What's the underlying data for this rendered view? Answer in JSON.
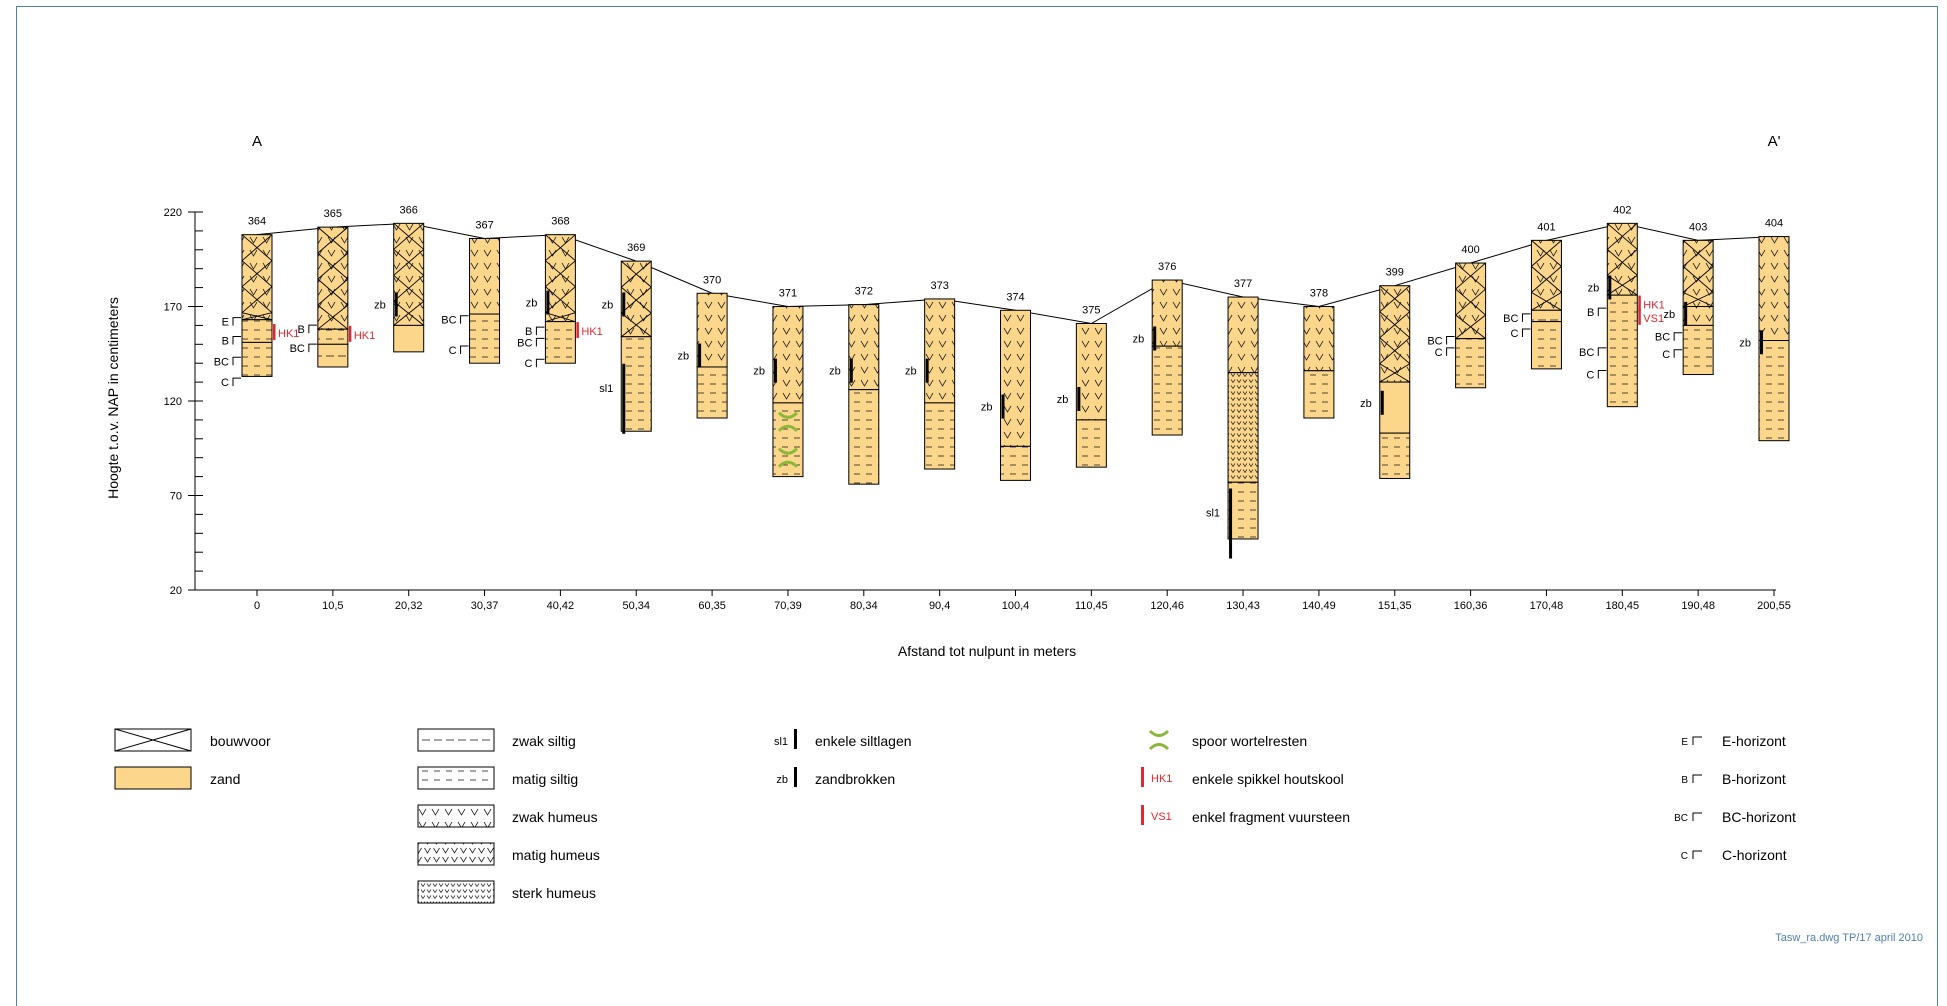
{
  "section": {
    "start_label": "A",
    "end_label": "A'"
  },
  "y_axis": {
    "label": "Hoogte t.o.v. NAP in centimeters",
    "ticks": [
      "220",
      "170",
      "120",
      "70",
      "20"
    ]
  },
  "x_axis": {
    "label": "Afstand tot nulpunt in meters"
  },
  "colors": {
    "zand": "#fcd68a",
    "frame": "#4f7fb5",
    "red": "#e0282d",
    "root": "#8bb83a"
  },
  "boreholes": [
    {
      "id": "364",
      "x_label": "0",
      "top": 208,
      "units": [
        {
          "from": 208,
          "to": 163,
          "t": "bouwvoor"
        },
        {
          "from": 163,
          "to": 151,
          "t": "matig_siltig"
        },
        {
          "from": 151,
          "to": 133,
          "t": "matig_siltig"
        }
      ],
      "horizons": [
        {
          "name": "E",
          "at": 162
        },
        {
          "name": "B",
          "at": 152
        },
        {
          "name": "BC",
          "at": 141
        },
        {
          "name": "C",
          "at": 130
        }
      ],
      "marks": [
        {
          "text": "HK1",
          "at": 156,
          "type": "hk"
        }
      ]
    },
    {
      "id": "365",
      "x_label": "10,5",
      "top": 212,
      "units": [
        {
          "from": 212,
          "to": 158,
          "t": "bouwvoor"
        },
        {
          "from": 158,
          "to": 150,
          "t": "matig_siltig"
        },
        {
          "from": 150,
          "to": 138,
          "t": "zwak_siltig"
        }
      ],
      "horizons": [
        {
          "name": "B",
          "at": 158
        },
        {
          "name": "BC",
          "at": 148
        }
      ],
      "marks": [
        {
          "text": "HK1",
          "at": 155,
          "type": "hk"
        }
      ]
    },
    {
      "id": "366",
      "x_label": "20,32",
      "top": 214,
      "units": [
        {
          "from": 214,
          "to": 160,
          "t": "bouwvoor"
        },
        {
          "from": 160,
          "to": 146,
          "t": "zand"
        }
      ],
      "horizons": [],
      "marks": [
        {
          "text": "zb",
          "at": 170,
          "type": "zb"
        }
      ]
    },
    {
      "id": "367",
      "x_label": "30,37",
      "top": 206,
      "units": [
        {
          "from": 206,
          "to": 166,
          "t": "zwak_humeus"
        },
        {
          "from": 166,
          "to": 140,
          "t": "matig_siltig"
        }
      ],
      "horizons": [
        {
          "name": "BC",
          "at": 163
        },
        {
          "name": "C",
          "at": 147
        }
      ],
      "marks": []
    },
    {
      "id": "368",
      "x_label": "40,42",
      "top": 208,
      "units": [
        {
          "from": 208,
          "to": 162,
          "t": "bouwvoor"
        },
        {
          "from": 162,
          "to": 140,
          "t": "matig_siltig"
        }
      ],
      "horizons": [
        {
          "name": "B",
          "at": 157
        },
        {
          "name": "BC",
          "at": 151
        },
        {
          "name": "C",
          "at": 140
        }
      ],
      "marks": [
        {
          "text": "zb",
          "at": 171,
          "type": "zb"
        },
        {
          "text": "HK1",
          "at": 157,
          "type": "hk"
        }
      ]
    },
    {
      "id": "369",
      "x_label": "50,34",
      "top": 194,
      "units": [
        {
          "from": 194,
          "to": 154,
          "t": "bouwvoor"
        },
        {
          "from": 154,
          "to": 104,
          "t": "matig_siltig"
        }
      ],
      "horizons": [],
      "marks": [
        {
          "text": "zb",
          "at": 170,
          "type": "zb"
        },
        {
          "text": "sl1",
          "at": 127,
          "type": "sl"
        }
      ]
    },
    {
      "id": "370",
      "x_label": "60,35",
      "top": 177,
      "units": [
        {
          "from": 177,
          "to": 138,
          "t": "zwak_humeus"
        },
        {
          "from": 138,
          "to": 111,
          "t": "matig_siltig"
        }
      ],
      "horizons": [],
      "marks": [
        {
          "text": "zb",
          "at": 143,
          "type": "zb"
        }
      ]
    },
    {
      "id": "371",
      "x_label": "70,39",
      "top": 170,
      "units": [
        {
          "from": 170,
          "to": 119,
          "t": "zwak_humeus"
        },
        {
          "from": 119,
          "to": 80,
          "t": "matig_siltig"
        }
      ],
      "horizons": [],
      "marks": [
        {
          "text": "zb",
          "at": 135,
          "type": "zb"
        },
        {
          "text": "root",
          "at": 109,
          "type": "root"
        },
        {
          "text": "root",
          "at": 90,
          "type": "root"
        }
      ]
    },
    {
      "id": "372",
      "x_label": "80,34",
      "top": 171,
      "units": [
        {
          "from": 171,
          "to": 126,
          "t": "zwak_humeus"
        },
        {
          "from": 126,
          "to": 76,
          "t": "matig_siltig"
        }
      ],
      "horizons": [],
      "marks": [
        {
          "text": "zb",
          "at": 135,
          "type": "zb"
        }
      ]
    },
    {
      "id": "373",
      "x_label": "90,4",
      "top": 174,
      "units": [
        {
          "from": 174,
          "to": 119,
          "t": "zwak_humeus"
        },
        {
          "from": 119,
          "to": 84,
          "t": "matig_siltig"
        }
      ],
      "horizons": [],
      "marks": [
        {
          "text": "zb",
          "at": 135,
          "type": "zb"
        }
      ]
    },
    {
      "id": "374",
      "x_label": "100,4",
      "top": 168,
      "units": [
        {
          "from": 168,
          "to": 96,
          "t": "zwak_humeus"
        },
        {
          "from": 96,
          "to": 78,
          "t": "matig_siltig"
        }
      ],
      "horizons": [],
      "marks": [
        {
          "text": "zb",
          "at": 116,
          "type": "zb"
        }
      ]
    },
    {
      "id": "375",
      "x_label": "110,45",
      "top": 161,
      "units": [
        {
          "from": 161,
          "to": 110,
          "t": "zwak_humeus"
        },
        {
          "from": 110,
          "to": 85,
          "t": "matig_siltig"
        }
      ],
      "horizons": [],
      "marks": [
        {
          "text": "zb",
          "at": 120,
          "type": "zb"
        }
      ]
    },
    {
      "id": "376",
      "x_label": "120,46",
      "top": 184,
      "units": [
        {
          "from": 184,
          "to": 149,
          "t": "zwak_humeus"
        },
        {
          "from": 149,
          "to": 102,
          "t": "matig_siltig"
        }
      ],
      "horizons": [],
      "marks": [
        {
          "text": "zb",
          "at": 152,
          "type": "zb"
        }
      ]
    },
    {
      "id": "377",
      "x_label": "130,43",
      "top": 175,
      "units": [
        {
          "from": 175,
          "to": 135,
          "t": "zwak_humeus"
        },
        {
          "from": 135,
          "to": 77,
          "t": "sterk_humeus"
        },
        {
          "from": 77,
          "to": 47,
          "t": "matig_siltig"
        }
      ],
      "horizons": [],
      "marks": [
        {
          "text": "sl1",
          "at": 61,
          "type": "sl"
        }
      ]
    },
    {
      "id": "378",
      "x_label": "140,49",
      "top": 170,
      "units": [
        {
          "from": 170,
          "to": 136,
          "t": "zwak_humeus"
        },
        {
          "from": 136,
          "to": 111,
          "t": "matig_siltig"
        }
      ],
      "horizons": [],
      "marks": []
    },
    {
      "id": "399",
      "x_label": "151,35",
      "top": 181,
      "units": [
        {
          "from": 181,
          "to": 130,
          "t": "bouwvoor"
        },
        {
          "from": 130,
          "to": 103,
          "t": "zand"
        },
        {
          "from": 103,
          "to": 79,
          "t": "matig_siltig"
        }
      ],
      "horizons": [],
      "marks": [
        {
          "text": "zb",
          "at": 118,
          "type": "zb"
        }
      ]
    },
    {
      "id": "400",
      "x_label": "160,36",
      "top": 193,
      "units": [
        {
          "from": 193,
          "to": 153,
          "t": "bouwvoor"
        },
        {
          "from": 153,
          "to": 127,
          "t": "matig_siltig"
        }
      ],
      "horizons": [
        {
          "name": "BC",
          "at": 152
        },
        {
          "name": "C",
          "at": 146
        }
      ],
      "marks": []
    },
    {
      "id": "401",
      "x_label": "170,48",
      "top": 205,
      "units": [
        {
          "from": 205,
          "to": 168,
          "t": "bouwvoor"
        },
        {
          "from": 168,
          "to": 162,
          "t": "zwak_siltig"
        },
        {
          "from": 162,
          "to": 137,
          "t": "matig_siltig"
        }
      ],
      "horizons": [
        {
          "name": "BC",
          "at": 164
        },
        {
          "name": "C",
          "at": 156
        }
      ],
      "marks": []
    },
    {
      "id": "402",
      "x_label": "180,45",
      "top": 214,
      "units": [
        {
          "from": 214,
          "to": 176,
          "t": "bouwvoor"
        },
        {
          "from": 176,
          "to": 117,
          "t": "matig_siltig"
        }
      ],
      "horizons": [
        {
          "name": "B",
          "at": 167
        },
        {
          "name": "BC",
          "at": 146
        },
        {
          "name": "C",
          "at": 134
        }
      ],
      "marks": [
        {
          "text": "zb",
          "at": 179,
          "type": "zb"
        },
        {
          "text": "HK1",
          "at": 171,
          "type": "hk"
        },
        {
          "text": "VS1",
          "at": 164,
          "type": "vs"
        }
      ]
    },
    {
      "id": "403",
      "x_label": "190,48",
      "top": 205,
      "units": [
        {
          "from": 205,
          "to": 170,
          "t": "bouwvoor"
        },
        {
          "from": 170,
          "to": 160,
          "t": "zwak_humeus"
        },
        {
          "from": 160,
          "to": 134,
          "t": "matig_siltig"
        }
      ],
      "horizons": [
        {
          "name": "BC",
          "at": 154
        },
        {
          "name": "C",
          "at": 145
        }
      ],
      "marks": [
        {
          "text": "zb",
          "at": 165,
          "type": "zb"
        }
      ]
    },
    {
      "id": "404",
      "x_label": "200,55",
      "top": 207,
      "units": [
        {
          "from": 207,
          "to": 152,
          "t": "zwak_humeus"
        },
        {
          "from": 152,
          "to": 99,
          "t": "matig_siltig"
        }
      ],
      "horizons": [],
      "marks": [
        {
          "text": "zb",
          "at": 150,
          "type": "zb"
        }
      ]
    }
  ],
  "legend": {
    "col1": [
      {
        "key": "bouwvoor",
        "label": "bouwvoor"
      },
      {
        "key": "zand",
        "label": "zand"
      }
    ],
    "col2": [
      {
        "key": "zwak_siltig",
        "label": "zwak siltig"
      },
      {
        "key": "matig_siltig",
        "label": "matig siltig"
      },
      {
        "key": "zwak_humeus",
        "label": "zwak humeus"
      },
      {
        "key": "matig_humeus",
        "label": "matig humeus"
      },
      {
        "key": "sterk_humeus",
        "label": "sterk humeus"
      }
    ],
    "col3": [
      {
        "code": "sl1",
        "label": "enkele siltlagen"
      },
      {
        "code": "zb",
        "label": "zandbrokken"
      }
    ],
    "col4": [
      {
        "code": "root",
        "label": "spoor wortelresten"
      },
      {
        "code": "HK1",
        "label": "enkele spikkel houtskool"
      },
      {
        "code": "VS1",
        "label": "enkel fragment vuursteen"
      }
    ],
    "col5": [
      {
        "code": "E",
        "label": "E-horizont"
      },
      {
        "code": "B",
        "label": "B-horizont"
      },
      {
        "code": "BC",
        "label": "BC-horizont"
      },
      {
        "code": "C",
        "label": "C-horizont"
      }
    ]
  },
  "footer": "Tasw_ra.dwg TP/17 april 2010"
}
